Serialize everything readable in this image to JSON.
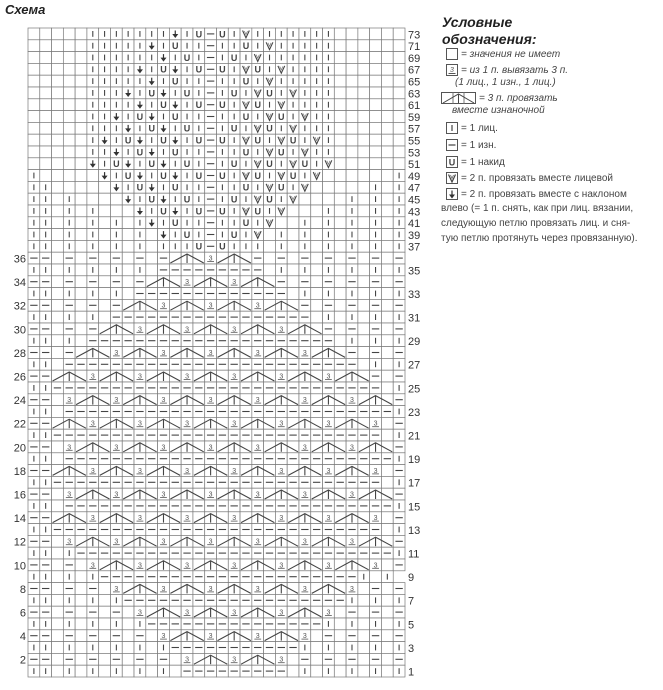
{
  "title": "Схема",
  "chart": {
    "columns": 32,
    "symbol_key": {
      ".": "empty-cell",
      "k": "knit-icon",
      "p": "purl-icon",
      "o": "yarn-over-icon",
      "v": "k2tog-icon",
      "a": "ssk-left-slant-icon",
      "3": "make-three-icon",
      "<^>": "p3tog-icon"
    },
    "rows": [
      {
        "number": "73",
        "cells": ".....kkkkkkkakopokvkkkkkkk......"
      },
      {
        "number": "71",
        "cells": ".....kkkkkakokkpkkokvkkkkk......"
      },
      {
        "number": "69",
        "cells": ".....kkkkkkakokpkokvkkkkkk......"
      },
      {
        "number": "67",
        "cells": ".....kkkkakoakopokvokvkkkk......"
      },
      {
        "number": "65",
        "cells": ".....kkkkkakokkpkkokvkkkkk......"
      },
      {
        "number": "63",
        "cells": ".....kkkakoakokpkokvokvkkk......"
      },
      {
        "number": "61",
        "cells": ".....kkkkakoakopokvokvkkkk......"
      },
      {
        "number": "59",
        "cells": ".....kkakoakokkpkkokvokvkk......"
      },
      {
        "number": "57",
        "cells": ".....kkkakoakokpkokvokvkkk......"
      },
      {
        "number": "55",
        "cells": ".....kakoakoakopokvokvokvk......"
      },
      {
        "number": "53",
        "cells": ".....kkakoakokkpkkokvokvkk......"
      },
      {
        "number": "51",
        "cells": ".....akoakoakokpkokvokvokv......"
      },
      {
        "number": "49",
        "cells": "k.....akoakoakopokvokvokv......k"
      },
      {
        "number": "47",
        "cells": "kk.....akoakokkpkkokvokv.....k.k"
      },
      {
        "number": "45",
        "cells": "kk.k....akoakokpkokvokv....k.k.k"
      },
      {
        "number": "43",
        "cells": "kk.k.k...akoakopokvokv...k.k.k.k"
      },
      {
        "number": "41",
        "cells": "kk.k.k.k.kakokkpkkokv..k.k.k.k.k"
      },
      {
        "number": "39",
        "cells": "kk.k.k.k.k.akokpkokv.k.k.k.k.k.k"
      },
      {
        "number": "37",
        "cells": "kk.k.k.k.k.kkkopokkk.k.k.k.k.k.k"
      },
      {
        "number": "36",
        "cells": "pp.p.p.p.p.p<^>3<^>p.p.p.p.p.p.p"
      },
      {
        "number": "35",
        "cells": "kk.k.k.k.k.ppppppppp.k.k.k.k.k.k"
      },
      {
        "number": "34",
        "cells": "pp.p.p.p.p<^>3<^>3<^>p.p.p.p.p.p"
      },
      {
        "number": "33",
        "cells": "kk.k.k.k.ppppppppppppp.k.k.k.k.k"
      },
      {
        "number": "32",
        "cells": "pp.p.p.p<^>3<^>3<^>3<^>p.p.p.p.p"
      },
      {
        "number": "31",
        "cells": "kk.k.k.ppppppppppppppppp.k.k.k.k"
      },
      {
        "number": "30",
        "cells": "pp.p.p<^>3<^>3<^>3<^>3<^>p.p.p.p"
      },
      {
        "number": "29",
        "cells": "kk.k.ppppppppppppppppppppp.k.k.k"
      },
      {
        "number": "28",
        "cells": "pp.p<^>3<^>3<^>3<^>3<^>3<^>p.p.p"
      },
      {
        "number": "27",
        "cells": "kk.ppppppppppppppppppppppppp.k.k"
      },
      {
        "number": "26",
        "cells": "pp<^>3<^>3<^>3<^>3<^>3<^>3<^>p.p"
      },
      {
        "number": "25",
        "cells": "kkpppppppppppppppppppppppppppp.k"
      },
      {
        "number": "24",
        "cells": "pp.3<^>3<^>3<^>3<^>3<^>3<^>3<^>p"
      },
      {
        "number": "23",
        "cells": "kk.ppppppppppppppppppppppppppppk"
      },
      {
        "number": "22",
        "cells": "pp<^>3<^>3<^>3<^>3<^>3<^>3<^>3.p"
      },
      {
        "number": "21",
        "cells": "kkpppppppppppppppppppppppppppp.k"
      },
      {
        "number": "20",
        "cells": "pp.3<^>3<^>3<^>3<^>3<^>3<^>3<^>p"
      },
      {
        "number": "19",
        "cells": "kk.ppppppppppppppppppppppppppppk"
      },
      {
        "number": "18",
        "cells": "pp<^>3<^>3<^>3<^>3<^>3<^>3<^>3.p"
      },
      {
        "number": "17",
        "cells": "kkpppppppppppppppppppppppppppp.k"
      },
      {
        "number": "16",
        "cells": "pp.3<^>3<^>3<^>3<^>3<^>3<^>3<^>p"
      },
      {
        "number": "15",
        "cells": "kk.ppppppppppppppppppppppppppppk"
      },
      {
        "number": "14",
        "cells": "pp<^>3<^>3<^>3<^>3<^>3<^>3<^>3.p"
      },
      {
        "number": "13",
        "cells": "kkpppppppppppppppppppppppppppp.k"
      },
      {
        "number": "12",
        "cells": "pp.3<^>3<^>3<^>3<^>3<^>3<^>3<^>p"
      },
      {
        "number": "11",
        "cells": "kk.kpppppppppppppppppppppppppppk"
      },
      {
        "number": "10",
        "cells": "pp.p.3<^>3<^>3<^>3<^>3<^>3<^>3.p"
      },
      {
        "number": "9",
        "cells": "kk.k.kppppppppppppppppppppppk.k"
      },
      {
        "number": "8",
        "cells": "pp.p.p.3<^>3<^>3<^>3<^>3<^>3.p.p"
      },
      {
        "number": "7",
        "cells": "kk.k.k.kpppppppppppppppppppk.k.k"
      },
      {
        "number": "6",
        "cells": "pp.p.p.p.3<^>3<^>3<^>3<^>3.p.p.p"
      },
      {
        "number": "5",
        "cells": "kk.k.k.k.kpppppppppppppppk.k.k.k"
      },
      {
        "number": "4",
        "cells": "pp.p.p.p.p.3<^>3<^>3<^>3.p.p.p.p"
      },
      {
        "number": "3",
        "cells": "kk.k.k.k.k.kpppppppppppk.k.k.k.k"
      },
      {
        "number": "2",
        "cells": "pp.p.p.p.p.p.3<^>3<^>3.p.p.p.p.p"
      },
      {
        "number": "1",
        "cells": "kk.k.k.k.k.k.ppppppppp.k.k.k.k.k"
      }
    ]
  },
  "legend": {
    "title_line1": "Условные",
    "title_line2": "обозначения:",
    "items": [
      {
        "icon": "empty-cell-icon",
        "code": ".",
        "text": "= значения не имеет"
      },
      {
        "icon": "make-three-icon",
        "code": "3",
        "text": "= из 1 п. вывязать 3 п.",
        "text2": "(1 лиц., 1 изн., 1 лиц.)"
      },
      {
        "icon": "p3tog-icon",
        "code": "<^>",
        "text": "= 3 п. провязать",
        "text2": "вместе изнаночной"
      },
      {
        "icon": "knit-icon",
        "code": "k",
        "text": "= 1 лиц."
      },
      {
        "icon": "purl-icon",
        "code": "p",
        "text": "= 1 изн."
      },
      {
        "icon": "yarn-over-icon",
        "code": "o",
        "text": "= 1 накид"
      },
      {
        "icon": "k2tog-icon",
        "code": "v",
        "text": "= 2 п. провязать вместе лицевой"
      },
      {
        "icon": "ssk-left-slant-icon",
        "code": "a",
        "text": "= 2 п. провязать вместе с наклоном",
        "text2": "влево (= 1 п. снять, как при лиц. вязании,",
        "text3": "следующую петлю провязать лиц. и сня-",
        "text4": "тую петлю протянуть через провязанную)."
      }
    ]
  }
}
